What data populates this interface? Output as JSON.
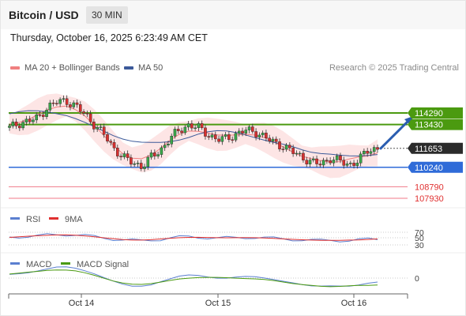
{
  "header": {
    "title": "Bitcoin / USD",
    "interval": "30 MIN"
  },
  "datetime": "Thursday, October 16, 2025 6:23:49 AM CET",
  "legend": {
    "ma_label": "MA 20 + Bollinger Bands",
    "ma50_label": "MA 50",
    "credit": "Research © 2025 Trading Central"
  },
  "colors": {
    "ma20": "#f08080",
    "ma50": "#3c5a9a",
    "band": "#fde0e0",
    "resistance": "#4b9a10",
    "support": "#2f6bd8",
    "lower": "#f07a8a",
    "rsi": "#5b7fd0",
    "rsi_ma": "#e03030",
    "macd": "#5b7fd0",
    "macd_signal": "#4b9a10"
  },
  "chart_data": [
    {
      "type": "candlestick",
      "title": "Bitcoin / USD",
      "x_ticks": [
        "Oct 14",
        "Oct 15",
        "Oct 16"
      ],
      "levels": [
        {
          "value": "114290",
          "kind": "resistance"
        },
        {
          "value": "113430",
          "kind": "resistance"
        },
        {
          "value": "111653",
          "kind": "current"
        },
        {
          "value": "110240",
          "kind": "support"
        },
        {
          "value": "108790",
          "kind": "lower"
        },
        {
          "value": "107930",
          "kind": "lower"
        }
      ],
      "close_path": [
        113200,
        113500,
        113700,
        113900,
        114700,
        115100,
        115200,
        114800,
        114200,
        113400,
        112700,
        111700,
        111000,
        110600,
        110300,
        111000,
        111500,
        112400,
        113000,
        113400,
        113200,
        112700,
        112300,
        112400,
        112700,
        113000,
        112900,
        112500,
        112100,
        111800,
        111400,
        111000,
        110600,
        110500,
        110900,
        110700,
        110400,
        110800,
        111500,
        111653
      ],
      "series": [
        {
          "name": "MA 20 + Bollinger Bands"
        },
        {
          "name": "MA 50"
        }
      ]
    },
    {
      "type": "line",
      "panel": "RSI",
      "series": [
        {
          "name": "RSI"
        },
        {
          "name": "9MA"
        }
      ],
      "yticks": [
        "70",
        "50",
        "30"
      ]
    },
    {
      "type": "line",
      "panel": "MACD",
      "series": [
        {
          "name": "MACD"
        },
        {
          "name": "MACD Signal"
        }
      ],
      "yticks": [
        "0"
      ]
    }
  ]
}
